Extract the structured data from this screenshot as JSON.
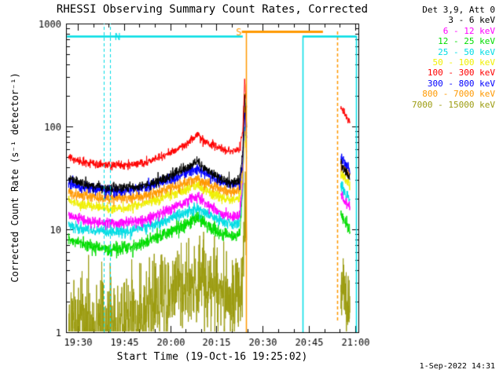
{
  "footer": {
    "timestamp": "1-Sep-2022 14:31"
  },
  "chart_data": {
    "type": "line",
    "title": "RHESSI Observing Summary Count Rates, Corrected",
    "xlabel": "Start Time (19-Oct-16 19:25:02)",
    "ylabel": "Corrected Count Rate (s⁻¹ detector⁻¹)",
    "yscale": "log",
    "grid": false,
    "ylim": [
      1,
      1000
    ],
    "xlim_minutes": [
      1.2,
      96
    ],
    "x_ticks": [
      {
        "t": 5,
        "label": "19:30"
      },
      {
        "t": 20,
        "label": "19:45"
      },
      {
        "t": 35,
        "label": "20:00"
      },
      {
        "t": 50,
        "label": "20:15"
      },
      {
        "t": 65,
        "label": "20:30"
      },
      {
        "t": 80,
        "label": "20:45"
      },
      {
        "t": 95,
        "label": "21:00"
      }
    ],
    "x_minor_step_minutes": 5,
    "y_ticks": [
      {
        "v": 1,
        "label": "1"
      },
      {
        "v": 10,
        "label": "10"
      },
      {
        "v": 100,
        "label": "100"
      },
      {
        "v": 1000,
        "label": "1000"
      }
    ],
    "legend_title": "Det 3,9, Att 0",
    "legend_position": "top-right",
    "seed": 20161019,
    "draw_order": [
      8,
      2,
      3,
      1,
      4,
      7,
      6,
      0,
      5
    ],
    "series": [
      {
        "name": "3 - 6 keV",
        "color": "#000000",
        "sigma": 0.055,
        "segments": [
          [
            [
              2,
              32
            ],
            [
              8,
              27
            ],
            [
              14,
              25
            ],
            [
              20,
              25
            ],
            [
              27,
              27
            ],
            [
              33,
              31
            ],
            [
              38,
              36
            ],
            [
              42,
              42
            ],
            [
              44,
              46
            ],
            [
              46,
              40
            ],
            [
              49,
              34
            ],
            [
              52,
              30
            ],
            [
              55,
              28
            ],
            [
              57.5,
              30
            ],
            [
              58.5,
              55
            ],
            [
              59.1,
              200
            ],
            [
              59.8,
              100
            ]
          ],
          [
            [
              90.3,
              45
            ],
            [
              91.6,
              38
            ],
            [
              93.3,
              31
            ]
          ]
        ]
      },
      {
        "name": "6 - 12 keV",
        "color": "#FF00FF",
        "sigma": 0.06,
        "segments": [
          [
            [
              2,
              14
            ],
            [
              8,
              12
            ],
            [
              14,
              11.5
            ],
            [
              20,
              11.5
            ],
            [
              27,
              12.5
            ],
            [
              33,
              15
            ],
            [
              38,
              17
            ],
            [
              42,
              20
            ],
            [
              44,
              21
            ],
            [
              46,
              18
            ],
            [
              49,
              16
            ],
            [
              52,
              14
            ],
            [
              55,
              13
            ],
            [
              57.5,
              14
            ],
            [
              58.5,
              30
            ],
            [
              59.1,
              170
            ],
            [
              59.8,
              70
            ]
          ],
          [
            [
              90.3,
              22
            ],
            [
              91.6,
              19
            ],
            [
              93.3,
              16
            ]
          ]
        ]
      },
      {
        "name": "12 - 25 keV",
        "color": "#00DE00",
        "sigma": 0.075,
        "segments": [
          [
            [
              2,
              8
            ],
            [
              8,
              7
            ],
            [
              14,
              6.5
            ],
            [
              20,
              6.5
            ],
            [
              27,
              7.5
            ],
            [
              33,
              9
            ],
            [
              38,
              10.5
            ],
            [
              42,
              12
            ],
            [
              44,
              13
            ],
            [
              46,
              11.5
            ],
            [
              49,
              10
            ],
            [
              52,
              9
            ],
            [
              55,
              8.5
            ],
            [
              57.5,
              9
            ],
            [
              58.5,
              25
            ],
            [
              59.1,
              220
            ],
            [
              59.8,
              80
            ]
          ],
          [
            [
              90.3,
              14
            ],
            [
              91.6,
              12
            ],
            [
              93.3,
              10
            ]
          ]
        ]
      },
      {
        "name": "25 - 50 keV",
        "color": "#00DDE5",
        "sigma": 0.065,
        "segments": [
          [
            [
              2,
              11
            ],
            [
              8,
              10
            ],
            [
              14,
              9.5
            ],
            [
              20,
              9.5
            ],
            [
              27,
              10.5
            ],
            [
              33,
              12
            ],
            [
              38,
              14
            ],
            [
              42,
              15.5
            ],
            [
              44,
              16
            ],
            [
              46,
              14.5
            ],
            [
              49,
              13
            ],
            [
              52,
              12
            ],
            [
              55,
              11
            ],
            [
              57.5,
              12
            ],
            [
              58.5,
              25
            ],
            [
              59.1,
              110
            ],
            [
              59.8,
              50
            ]
          ],
          [
            [
              90.3,
              26
            ],
            [
              91.6,
              23
            ],
            [
              93.3,
              20
            ]
          ]
        ]
      },
      {
        "name": "50 - 100 keV",
        "color": "#F0F000",
        "sigma": 0.055,
        "segments": [
          [
            [
              2,
              19
            ],
            [
              8,
              17
            ],
            [
              14,
              16
            ],
            [
              20,
              16
            ],
            [
              27,
              18
            ],
            [
              33,
              20
            ],
            [
              38,
              23
            ],
            [
              42,
              26
            ],
            [
              44,
              27
            ],
            [
              46,
              24
            ],
            [
              49,
              22
            ],
            [
              52,
              20
            ],
            [
              55,
              19
            ],
            [
              57.5,
              20
            ],
            [
              58.5,
              35
            ],
            [
              59.1,
              90
            ],
            [
              59.8,
              55
            ]
          ],
          [
            [
              90.3,
              35
            ],
            [
              91.6,
              31
            ],
            [
              93.3,
              27
            ]
          ]
        ]
      },
      {
        "name": "100 - 300 keV",
        "color": "#FF0000",
        "sigma": 0.045,
        "segments": [
          [
            [
              2,
              50
            ],
            [
              8,
              44
            ],
            [
              14,
              42
            ],
            [
              20,
              42
            ],
            [
              27,
              45
            ],
            [
              33,
              52
            ],
            [
              38,
              62
            ],
            [
              42,
              75
            ],
            [
              44,
              85
            ],
            [
              46,
              72
            ],
            [
              49,
              65
            ],
            [
              52,
              60
            ],
            [
              55,
              57
            ],
            [
              57.5,
              60
            ],
            [
              58.5,
              90
            ],
            [
              59.1,
              280
            ],
            [
              59.8,
              150
            ]
          ],
          [
            [
              90.3,
              150
            ],
            [
              91.6,
              132
            ],
            [
              93.3,
              110
            ]
          ]
        ]
      },
      {
        "name": "300 - 800 keV",
        "color": "#0000FF",
        "sigma": 0.06,
        "segments": [
          [
            [
              2,
              28
            ],
            [
              8,
              25
            ],
            [
              14,
              24
            ],
            [
              20,
              24
            ],
            [
              27,
              26
            ],
            [
              33,
              29
            ],
            [
              38,
              33
            ],
            [
              42,
              37
            ],
            [
              44,
              39
            ],
            [
              46,
              35
            ],
            [
              49,
              31
            ],
            [
              52,
              29
            ],
            [
              55,
              27
            ],
            [
              57.5,
              28
            ],
            [
              58.5,
              45
            ],
            [
              59.1,
              130
            ],
            [
              59.8,
              75
            ]
          ],
          [
            [
              90.3,
              50
            ],
            [
              91.6,
              44
            ],
            [
              93.3,
              38
            ]
          ]
        ]
      },
      {
        "name": "800 - 7000 keV",
        "color": "#FF9900",
        "sigma": 0.06,
        "segments": [
          [
            [
              2,
              23
            ],
            [
              8,
              21
            ],
            [
              14,
              20
            ],
            [
              20,
              20
            ],
            [
              27,
              21
            ],
            [
              33,
              24
            ],
            [
              38,
              27
            ],
            [
              42,
              30
            ],
            [
              44,
              31
            ],
            [
              46,
              28
            ],
            [
              49,
              26
            ],
            [
              52,
              24
            ],
            [
              55,
              23
            ],
            [
              57.5,
              24
            ],
            [
              58.5,
              40
            ],
            [
              59.1,
              150
            ],
            [
              59.8,
              85
            ]
          ],
          [
            [
              90.3,
              42
            ],
            [
              91.6,
              38
            ],
            [
              93.3,
              34
            ]
          ]
        ]
      },
      {
        "name": "7000 - 15000 keV",
        "color": "#9C9C10",
        "sigma": 0.5,
        "segments": [
          [
            [
              2,
              1.05
            ],
            [
              10,
              1.1
            ],
            [
              20,
              1.3
            ],
            [
              27,
              1.6
            ],
            [
              33,
              2.2
            ],
            [
              38,
              2.6
            ],
            [
              42,
              3
            ],
            [
              46,
              3.2
            ],
            [
              50,
              2.6
            ],
            [
              54,
              2
            ],
            [
              57.5,
              2.2
            ],
            [
              58.5,
              4
            ],
            [
              59.1,
              20
            ],
            [
              59.8,
              8
            ]
          ],
          [
            [
              90.3,
              3
            ],
            [
              91.6,
              2.2
            ],
            [
              93.3,
              1.6
            ]
          ]
        ]
      }
    ],
    "legend": [
      {
        "label": "3 - 6 keV",
        "color": "#000000"
      },
      {
        "label": "6 - 12 keV",
        "color": "#FF00FF"
      },
      {
        "label": "12 - 25 keV",
        "color": "#00DE00"
      },
      {
        "label": "25 - 50 keV",
        "color": "#00DDE5"
      },
      {
        "label": "50 - 100 keV",
        "color": "#F0F000"
      },
      {
        "label": "100 - 300 keV",
        "color": "#FF0000"
      },
      {
        "label": "300 - 800 keV",
        "color": "#0000FF"
      },
      {
        "label": "800 - 7000 keV",
        "color": "#FF9900"
      },
      {
        "label": "7000 - 15000 keV",
        "color": "#9C9C10"
      }
    ],
    "events": {
      "bars": [
        {
          "label": "N",
          "label_t": 17,
          "color": "#00DDE5",
          "t0": 1.5,
          "t1": 58.5,
          "value": 760,
          "lw": 2.5
        },
        {
          "label": "S",
          "label_t": 56.3,
          "color": "#FF9900",
          "t0": 58.2,
          "t1": 84.5,
          "value": 840,
          "lw": 3
        },
        {
          "label": "",
          "label_t": 0,
          "color": "#00DDE5",
          "t0": 78,
          "t1": 95.3,
          "value": 760,
          "lw": 2.5
        }
      ],
      "vlines": [
        {
          "t": 13.5,
          "color": "#00DDE5",
          "dash": [
            4,
            3
          ],
          "v0": 1,
          "v1": 1000,
          "width": 1
        },
        {
          "t": 15.5,
          "color": "#00DDE5",
          "dash": [
            4,
            3
          ],
          "v0": 1,
          "v1": 1000,
          "width": 1
        },
        {
          "t": 59.5,
          "color": "#FF9900",
          "v0": 1,
          "v1": 840,
          "width": 1.5
        },
        {
          "t": 78,
          "color": "#00DDE5",
          "v0": 1,
          "v1": 760,
          "width": 1.5
        },
        {
          "t": 89,
          "color": "#FF9900",
          "dash": [
            4,
            3
          ],
          "v0": 1.3,
          "v1": 840,
          "width": 1.5
        },
        {
          "t": 95.3,
          "color": "#00DDE5",
          "v0": 1,
          "v1": 760,
          "width": 1.5
        }
      ]
    }
  }
}
